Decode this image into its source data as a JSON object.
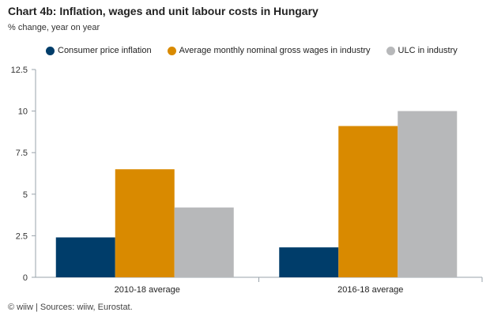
{
  "header": {
    "title": "Chart 4b: Inflation, wages and unit labour costs in Hungary",
    "subtitle": "% change, year on year"
  },
  "footer": {
    "source": "© wiiw | Sources: wiiw, Eurostat."
  },
  "chart_data": {
    "type": "bar",
    "title": "Chart 4b: Inflation, wages and unit labour costs in Hungary",
    "subtitle": "% change, year on year",
    "categories": [
      "2010-18 average",
      "2016-18 average"
    ],
    "series": [
      {
        "name": "Consumer price inflation",
        "values": [
          2.4,
          1.8
        ],
        "color": "#003d6a"
      },
      {
        "name": "Average monthly nominal gross wages in industry",
        "values": [
          6.5,
          9.1
        ],
        "color": "#d98a00"
      },
      {
        "name": "ULC in industry",
        "values": [
          4.2,
          10.0
        ],
        "color": "#b7b8ba"
      }
    ],
    "yticks": [
      "0",
      "2.5",
      "5",
      "7.5",
      "10",
      "12.5"
    ],
    "ylim": [
      0,
      12.5
    ],
    "xlabel": "",
    "ylabel": "",
    "grid": false,
    "legend": "top"
  }
}
